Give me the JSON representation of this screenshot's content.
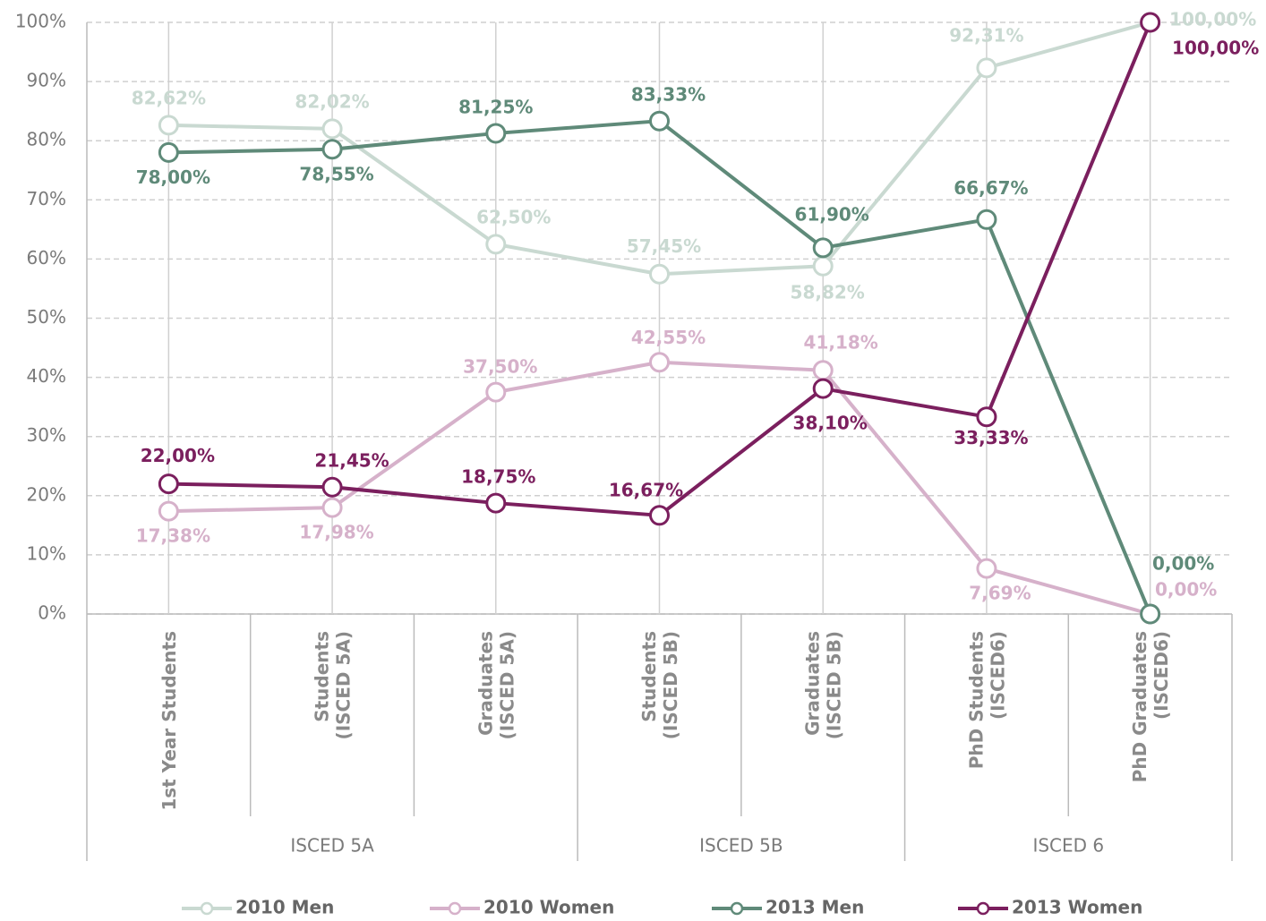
{
  "chart_data": {
    "type": "line",
    "categories": [
      [
        "1st Year  Students"
      ],
      [
        "Students",
        "(ISCED 5A)"
      ],
      [
        "Graduates",
        "(ISCED 5A)"
      ],
      [
        "Students",
        "(ISCED 5B)"
      ],
      [
        "Graduates",
        "(ISCED 5B)"
      ],
      [
        "PhD Students",
        "(ISCED6)"
      ],
      [
        "PhD Graduates",
        "(ISCED6)"
      ]
    ],
    "category_groups": [
      "ISCED 5A",
      "ISCED 5A",
      "ISCED 5A",
      "ISCED 5B",
      "ISCED 5B",
      "ISCED 6",
      "ISCED 6"
    ],
    "ylim": [
      0,
      100
    ],
    "yticks": [
      {
        "value": 0,
        "label": "0%"
      },
      {
        "value": 10,
        "label": "10%"
      },
      {
        "value": 20,
        "label": "20%"
      },
      {
        "value": 30,
        "label": "30%"
      },
      {
        "value": 40,
        "label": "40%"
      },
      {
        "value": 50,
        "label": "50%"
      },
      {
        "value": 60,
        "label": "60%"
      },
      {
        "value": 70,
        "label": "70%"
      },
      {
        "value": 80,
        "label": "80%"
      },
      {
        "value": 90,
        "label": "90%"
      },
      {
        "value": 100,
        "label": "100%"
      }
    ],
    "grid": true,
    "legend": "bottom",
    "series": [
      {
        "name": "2010 Men",
        "color": "#c9d9d1",
        "values": [
          82.62,
          82.02,
          62.5,
          57.45,
          58.82,
          92.31,
          100
        ],
        "value_labels": [
          "82,62%",
          "82,02%",
          "62,50%",
          "57,45%",
          "58,82%",
          "92,31%",
          "100,00%"
        ]
      },
      {
        "name": "2010 Women",
        "color": "#d6b1ca",
        "values": [
          17.38,
          17.98,
          37.5,
          42.55,
          41.18,
          7.69,
          0
        ],
        "value_labels": [
          "17,38%",
          "17,98%",
          "37,50%",
          "42,55%",
          "41,18%",
          "7,69%",
          "0,00%"
        ]
      },
      {
        "name": "2013 Men",
        "color": "#5f8a79",
        "values": [
          78,
          78.55,
          81.25,
          83.33,
          61.9,
          66.67,
          0
        ],
        "value_labels": [
          "78,00%",
          "78,55%",
          "81,25%",
          "83,33%",
          "61,90%",
          "66,67%",
          "0,00%"
        ]
      },
      {
        "name": "2013 Women",
        "color": "#7b1f5e",
        "values": [
          22,
          21.45,
          18.75,
          16.67,
          38.1,
          33.33,
          100
        ],
        "value_labels": [
          "22,00%",
          "21,45%",
          "18,75%",
          "16,67%",
          "38,10%",
          "33,33%",
          "100,00%"
        ]
      }
    ]
  }
}
